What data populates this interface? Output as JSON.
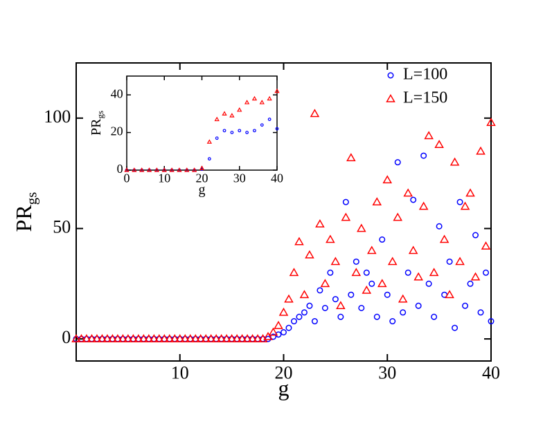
{
  "chart_data": [
    {
      "type": "scatter",
      "xlabel": "g",
      "ylabel": "PR",
      "ylabel_sub": "gs",
      "xlim": [
        0,
        40
      ],
      "ylim": [
        -10,
        125
      ],
      "xticks": [
        10,
        20,
        30,
        40
      ],
      "yticks": [
        0,
        50,
        100
      ],
      "legend": "upper right",
      "x": [
        0,
        0.5,
        1,
        1.5,
        2,
        2.5,
        3,
        3.5,
        4,
        4.5,
        5,
        5.5,
        6,
        6.5,
        7,
        7.5,
        8,
        8.5,
        9,
        9.5,
        10,
        10.5,
        11,
        11.5,
        12,
        12.5,
        13,
        13.5,
        14,
        14.5,
        15,
        15.5,
        16,
        16.5,
        17,
        17.5,
        18,
        18.5,
        19,
        19.5,
        20,
        20.5,
        21,
        21.5,
        22,
        22.5,
        23,
        23.5,
        24,
        24.5,
        25,
        25.5,
        26,
        26.5,
        27,
        27.5,
        28,
        28.5,
        29,
        29.5,
        30,
        30.5,
        31,
        31.5,
        32,
        32.5,
        33,
        33.5,
        34,
        34.5,
        35,
        35.5,
        36,
        36.5,
        37,
        37.5,
        38,
        38.5,
        39,
        39.5,
        40
      ],
      "series": [
        {
          "name": "L=100",
          "color": "#0000ff",
          "marker": "circle",
          "values": [
            0,
            0,
            0,
            0,
            0,
            0,
            0,
            0,
            0,
            0,
            0,
            0,
            0,
            0,
            0,
            0,
            0,
            0,
            0,
            0,
            0,
            0,
            0,
            0,
            0,
            0,
            0,
            0,
            0,
            0,
            0,
            0,
            0,
            0,
            0,
            0,
            0,
            0,
            1,
            2,
            3,
            5,
            8,
            10,
            12,
            15,
            8,
            22,
            14,
            30,
            18,
            10,
            62,
            20,
            35,
            14,
            30,
            25,
            10,
            45,
            20,
            8,
            80,
            12,
            30,
            63,
            15,
            83,
            25,
            10,
            51,
            20,
            35,
            5,
            62,
            15,
            25,
            47,
            12,
            30,
            8
          ]
        },
        {
          "name": "L=150",
          "color": "#ff0000",
          "marker": "triangle",
          "values": [
            0,
            0,
            0,
            0,
            0,
            0,
            0,
            0,
            0,
            0,
            0,
            0,
            0,
            0,
            0,
            0,
            0,
            0,
            0,
            0,
            0,
            0,
            0,
            0,
            0,
            0,
            0,
            0,
            0,
            0,
            0,
            0,
            0,
            0,
            0,
            0,
            0,
            1,
            3,
            6,
            12,
            18,
            30,
            44,
            20,
            38,
            102,
            52,
            25,
            45,
            35,
            15,
            55,
            82,
            30,
            50,
            22,
            40,
            62,
            25,
            72,
            35,
            55,
            18,
            66,
            40,
            28,
            60,
            92,
            30,
            88,
            45,
            20,
            80,
            35,
            60,
            66,
            28,
            85,
            42,
            98
          ]
        }
      ]
    },
    {
      "type": "scatter",
      "xlabel": "g",
      "ylabel": "PR",
      "ylabel_sub": "gs",
      "xlim": [
        0,
        40
      ],
      "ylim": [
        0,
        50
      ],
      "xticks": [
        0,
        10,
        20,
        30,
        40
      ],
      "yticks": [
        0,
        20,
        40
      ],
      "x": [
        0,
        2,
        4,
        6,
        8,
        10,
        12,
        14,
        16,
        18,
        20,
        22,
        24,
        26,
        28,
        30,
        32,
        34,
        36,
        38,
        40
      ],
      "series": [
        {
          "name": "L=100",
          "color": "#0000ff",
          "marker": "circle",
          "values": [
            0,
            0,
            0,
            0,
            0,
            0,
            0,
            0,
            0,
            0,
            0.5,
            6,
            17,
            21,
            20,
            21,
            20,
            21,
            24,
            27,
            22
          ]
        },
        {
          "name": "L=150",
          "color": "#ff0000",
          "marker": "triangle",
          "values": [
            0,
            0,
            0,
            0,
            0,
            0,
            0,
            0,
            0,
            0,
            1,
            15,
            27,
            30,
            29,
            32,
            36,
            38,
            36,
            38,
            42
          ]
        }
      ]
    }
  ]
}
